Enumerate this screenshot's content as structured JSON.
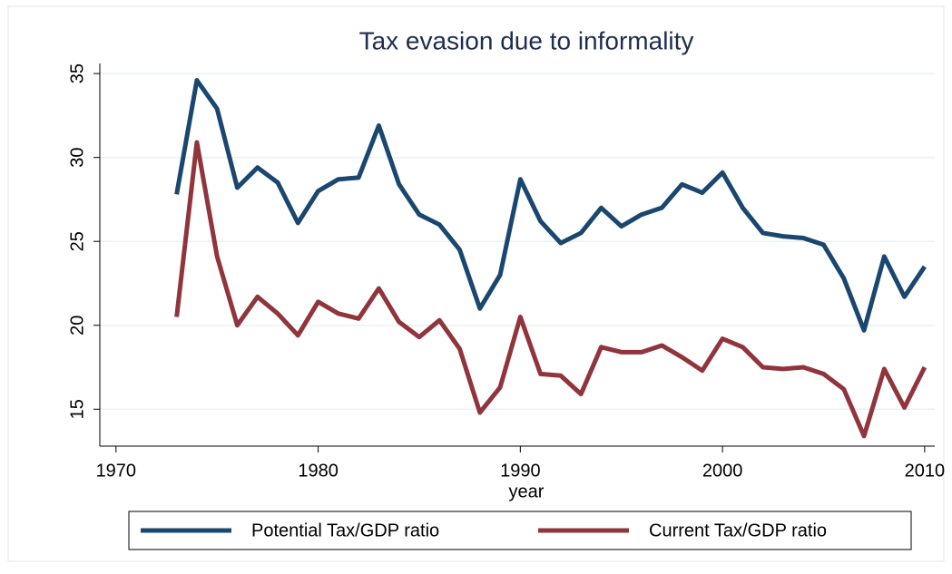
{
  "chart_data": {
    "type": "line",
    "title": "Tax evasion due to informality",
    "x_label": "year",
    "x": [
      1973,
      1974,
      1975,
      1976,
      1977,
      1978,
      1979,
      1980,
      1981,
      1982,
      1983,
      1984,
      1985,
      1986,
      1987,
      1988,
      1989,
      1990,
      1991,
      1992,
      1993,
      1994,
      1995,
      1996,
      1997,
      1998,
      1999,
      2000,
      2001,
      2002,
      2003,
      2004,
      2005,
      2006,
      2007,
      2008,
      2009,
      2010
    ],
    "series": [
      {
        "name": "Potential Tax/GDP ratio",
        "color": "#1a476f",
        "values": [
          27.8,
          34.6,
          32.9,
          28.2,
          29.4,
          28.5,
          26.1,
          28.0,
          28.7,
          28.8,
          31.9,
          28.4,
          26.6,
          26.0,
          24.5,
          21.0,
          23.0,
          28.7,
          26.2,
          24.9,
          25.5,
          27.0,
          25.9,
          26.6,
          27.0,
          28.4,
          27.9,
          29.1,
          27.0,
          25.5,
          25.3,
          25.2,
          24.8,
          22.8,
          19.7,
          24.1,
          21.7,
          23.5
        ]
      },
      {
        "name": "Current Tax/GDP ratio",
        "color": "#90353b",
        "values": [
          20.5,
          30.9,
          24.1,
          20.0,
          21.7,
          20.7,
          19.4,
          21.4,
          20.7,
          20.4,
          22.2,
          20.2,
          19.3,
          20.3,
          18.6,
          14.8,
          16.3,
          20.5,
          17.1,
          17.0,
          15.9,
          18.7,
          18.4,
          18.4,
          18.8,
          18.1,
          17.3,
          19.2,
          18.7,
          17.5,
          17.4,
          17.5,
          17.1,
          16.2,
          13.4,
          17.4,
          15.1,
          17.5
        ]
      }
    ],
    "xlim": [
      1969.2,
      2010.5
    ],
    "xticks": [
      1970,
      1980,
      1990,
      2000,
      2010
    ],
    "ylim": [
      12.8,
      35.6
    ],
    "yticks": [
      15,
      20,
      25,
      30,
      35
    ],
    "grid": true,
    "legend": "bottom"
  }
}
